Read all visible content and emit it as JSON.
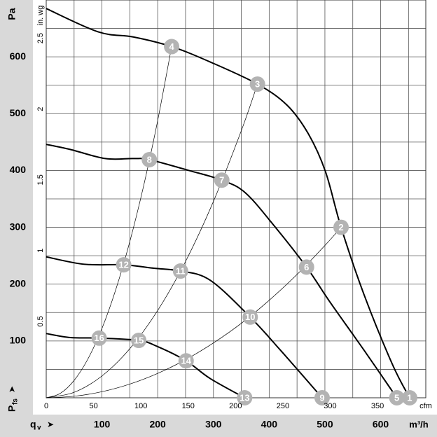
{
  "chart_data": {
    "type": "line",
    "y_unit": "Pa",
    "y2_unit": "in. wg",
    "x_unit": "m³/h",
    "x2_unit": "cfm",
    "x_symbol": "q",
    "x_symbol_sub": "v",
    "y_symbol": "P",
    "y_symbol_sub": "fs",
    "xlim": [
      0,
      681
    ],
    "ylim": [
      0,
      700
    ],
    "xticks": [
      100,
      200,
      300,
      400,
      500,
      600
    ],
    "yticks": [
      100,
      200,
      300,
      400,
      500,
      600
    ],
    "x2lim": [
      0,
      401
    ],
    "x2ticks": [
      0,
      50,
      100,
      150,
      200,
      250,
      300,
      350
    ],
    "y2lim": [
      0,
      2.81
    ],
    "y2ticks": [
      0.5,
      1,
      1.5,
      2,
      2.5
    ],
    "xgrid": [
      50,
      100,
      150,
      200,
      250,
      300,
      350,
      400,
      450,
      500,
      550,
      600,
      650
    ],
    "ygrid": [
      50,
      100,
      150,
      200,
      250,
      300,
      350,
      400,
      450,
      500,
      550,
      600,
      650
    ],
    "series": [
      {
        "color": "#000000",
        "width": 2,
        "x": [
          0,
          93,
          156,
          225,
          294,
          379,
          432,
          470,
          501,
          529,
          570,
          621,
          652
        ],
        "values": [
          685,
          644,
          635,
          618,
          591,
          552,
          515,
          465,
          398,
          300,
          182,
          59,
          0
        ]
      },
      {
        "color": "#000000",
        "width": 2,
        "x": [
          0,
          43,
          106,
          156,
          185,
          256,
          315,
          357,
          407,
          467,
          508,
          570,
          629
        ],
        "values": [
          446,
          437,
          421,
          421,
          419,
          400,
          383,
          361,
          305,
          230,
          170,
          84,
          0
        ]
      },
      {
        "color": "#000000",
        "width": 2,
        "x": [
          0,
          68,
          139,
          193,
          241,
          294,
          366,
          420,
          495
        ],
        "values": [
          248,
          235,
          234,
          228,
          223,
          207,
          142,
          84,
          0
        ]
      },
      {
        "color": "#000000",
        "width": 2,
        "x": [
          0,
          43,
          95,
          166,
          200,
          251,
          294,
          356
        ],
        "values": [
          113,
          106,
          105,
          101,
          90,
          65,
          34,
          0
        ]
      },
      {
        "color": "#000000",
        "width": 0.7,
        "x": [
          0,
          25,
          50,
          75,
          100,
          125,
          150,
          175,
          200,
          225
        ],
        "values": [
          0,
          7.6,
          30.5,
          68.7,
          122,
          191,
          275,
          374,
          488,
          618
        ]
      },
      {
        "color": "#000000",
        "width": 0.7,
        "x": [
          0,
          50,
          100,
          150,
          200,
          250,
          300,
          350,
          379
        ],
        "values": [
          0,
          9.6,
          38.4,
          86.4,
          153.6,
          240,
          345.6,
          470,
          552
        ]
      },
      {
        "color": "#000000",
        "width": 0.7,
        "x": [
          0,
          50,
          100,
          150,
          200,
          250,
          300,
          350,
          400,
          450,
          500,
          529
        ],
        "values": [
          0,
          2.7,
          10.7,
          24.1,
          42.9,
          67,
          96.5,
          131,
          171.5,
          217,
          268,
          300
        ]
      }
    ],
    "points": {
      "color": "#b3b3b3",
      "labels": [
        "1",
        "2",
        "3",
        "4",
        "5",
        "6",
        "7",
        "8",
        "9",
        "10",
        "11",
        "12",
        "13",
        "14",
        "15",
        "16"
      ],
      "x": [
        652,
        529,
        379,
        225,
        629,
        467,
        315,
        185,
        495,
        366,
        241,
        139,
        356,
        251,
        166,
        95
      ],
      "values": [
        0,
        300,
        552,
        618,
        0,
        230,
        383,
        419,
        0,
        142,
        223,
        234,
        0,
        65,
        101,
        105
      ]
    }
  }
}
